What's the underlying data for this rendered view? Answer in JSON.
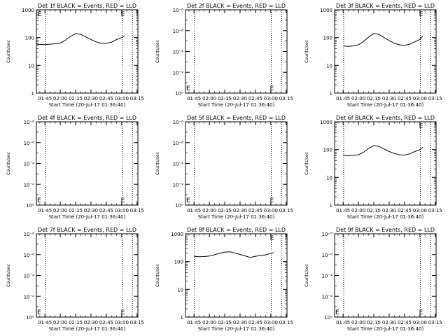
{
  "window": {
    "background": "#ffffff",
    "foreground": "#000000",
    "lld_color": "#ff0000"
  },
  "panels": [
    {
      "title": "Det 1f BLACK = Events, RED = LLD",
      "ylabel": "Counts/sec",
      "xlabel": "Start Time (20-Jul-17 01:36:40)",
      "scale": "decade",
      "yticks": [
        "1",
        "10",
        "100",
        "1000"
      ],
      "xticks": [
        "01:45",
        "02:00",
        "02:15",
        "02:30",
        "02:45",
        "03:00",
        "03:15"
      ],
      "marker_label": "E",
      "e_marker": "left-top",
      "has_data": true,
      "series": "A"
    },
    {
      "title": "Det 2f BLACK = Events, RED = LLD",
      "ylabel": "Counts/sec",
      "xlabel": "Start Time (20-Jul-17 01:36:40)",
      "scale": "tiny",
      "yticks": [
        "10⁰",
        "10⁻²",
        "10⁻⁴",
        "10⁻⁶",
        "10⁻⁸"
      ],
      "xticks": [
        "01:45",
        "02:00",
        "02:15",
        "02:30",
        "02:45",
        "03:00",
        "03:15"
      ],
      "marker_label": "E",
      "e_marker": "bottom",
      "has_data": false
    },
    {
      "title": "Det 3f BLACK = Events, RED = LLD",
      "ylabel": "Counts/sec",
      "xlabel": "Start Time (20-Jul-17 01:36:40)",
      "scale": "decade",
      "yticks": [
        "1",
        "10",
        "100",
        "1000"
      ],
      "xticks": [
        "01:45",
        "02:00",
        "02:15",
        "02:30",
        "02:45",
        "03:00",
        "03:15"
      ],
      "marker_label": "E",
      "e_marker": "right-top",
      "has_data": true,
      "series": "C"
    },
    {
      "title": "Det 4f BLACK = Events, RED = LLD",
      "ylabel": "Counts/sec",
      "xlabel": "Start Time (20-Jul-17 01:36:40)",
      "scale": "tiny",
      "yticks": [
        "10⁰",
        "10⁻²",
        "10⁻⁴",
        "10⁻⁶",
        "10⁻⁸"
      ],
      "xticks": [
        "01:45",
        "02:00",
        "02:15",
        "02:30",
        "02:45",
        "03:00",
        "03:15"
      ],
      "marker_label": "E",
      "e_marker": "bottom",
      "has_data": false
    },
    {
      "title": "Det 5f BLACK = Events, RED = LLD",
      "ylabel": "Counts/sec",
      "xlabel": "Start Time (20-Jul-17 01:36:40)",
      "scale": "tiny",
      "yticks": [
        "10⁰",
        "10⁻²",
        "10⁻⁴",
        "10⁻⁶",
        "10⁻⁸"
      ],
      "xticks": [
        "01:45",
        "02:00",
        "02:15",
        "02:30",
        "02:45",
        "03:00",
        "03:15"
      ],
      "marker_label": "E",
      "e_marker": "bottom",
      "has_data": false
    },
    {
      "title": "Det 6f BLACK = Events, RED = LLD",
      "ylabel": "Counts/sec",
      "xlabel": "Start Time (20-Jul-17 01:36:40)",
      "scale": "decade",
      "yticks": [
        "1",
        "10",
        "100",
        "1000"
      ],
      "xticks": [
        "01:45",
        "02:00",
        "02:15",
        "02:30",
        "02:45",
        "03:00",
        "03:15"
      ],
      "marker_label": "E",
      "e_marker": "right-top",
      "has_data": true,
      "series": "C"
    },
    {
      "title": "Det 7f BLACK = Events, RED = LLD",
      "ylabel": "Counts/sec",
      "xlabel": "Start Time (20-Jul-17 01:36:40)",
      "scale": "tiny",
      "yticks": [
        "10⁰",
        "10⁻²",
        "10⁻⁴",
        "10⁻⁶",
        "10⁻⁸"
      ],
      "xticks": [
        "01:45",
        "02:00",
        "02:15",
        "02:30",
        "02:45",
        "03:00",
        "03:15"
      ],
      "marker_label": "E",
      "e_marker": "bottom",
      "has_data": false
    },
    {
      "title": "Det 8f BLACK = Events, RED = LLD",
      "ylabel": "Counts/sec",
      "xlabel": "Start Time (20-Jul-17 01:36:40)",
      "scale": "decade",
      "yticks": [
        "1",
        "10",
        "100",
        "1000"
      ],
      "xticks": [
        "01:45",
        "02:00",
        "02:15",
        "02:30",
        "02:45",
        "03:00",
        "03:15"
      ],
      "marker_label": "E",
      "e_marker": "right-top",
      "has_data": true,
      "series": "H"
    },
    {
      "title": "Det 9f BLACK = Events, RED = LLD",
      "ylabel": "Counts/sec",
      "xlabel": "Start Time (20-Jul-17 01:36:40)",
      "scale": "tiny",
      "yticks": [
        "10⁰",
        "10⁻²",
        "10⁻⁴",
        "10⁻⁶",
        "10⁻⁸"
      ],
      "xticks": [
        "01:45",
        "02:00",
        "02:15",
        "02:30",
        "02:45",
        "03:00",
        "03:15"
      ],
      "marker_label": "E",
      "e_marker": "bottom",
      "has_data": false
    }
  ],
  "chart_data": [
    {
      "panel": "Det 1f",
      "type": "line",
      "title": "Det 1f BLACK = Events, RED = LLD",
      "ylabel": "Counts/sec",
      "xlabel": "Start Time (20-Jul-17 01:36:40)",
      "yscale": "log",
      "ylim": [
        1,
        1000
      ],
      "xlim": [
        "01:36:40",
        "03:15"
      ],
      "series": [
        {
          "x": [
            "01:36:40",
            "01:45",
            "01:50",
            "01:55",
            "02:00",
            "02:05",
            "02:10",
            "02:15",
            "02:20",
            "02:25",
            "02:30",
            "02:35",
            "02:40",
            "02:45",
            "02:50",
            "02:55",
            "03:00",
            "03:03"
          ],
          "values": [
            58,
            56,
            58,
            60,
            63,
            80,
            110,
            140,
            130,
            105,
            85,
            70,
            62,
            62,
            68,
            85,
            100,
            115
          ]
        }
      ]
    },
    {
      "panel": "Det 2f",
      "type": "line",
      "title": "Det 2f BLACK = Events, RED = LLD",
      "ylabel": "Counts/sec",
      "xlabel": "Start Time (20-Jul-17 01:36:40)",
      "yscale": "log",
      "ylim": [
        1e-08,
        1
      ],
      "series": []
    },
    {
      "panel": "Det 3f",
      "type": "line",
      "title": "Det 3f BLACK = Events, RED = LLD",
      "ylabel": "Counts/sec",
      "xlabel": "Start Time (20-Jul-17 01:36:40)",
      "yscale": "log",
      "ylim": [
        1,
        1000
      ],
      "series": [
        {
          "x": [
            "01:45",
            "01:50",
            "01:55",
            "02:00",
            "02:05",
            "02:10",
            "02:15",
            "02:20",
            "02:25",
            "02:30",
            "02:35",
            "02:40",
            "02:45",
            "02:50",
            "02:55",
            "03:00",
            "03:03"
          ],
          "values": [
            50,
            48,
            50,
            55,
            72,
            105,
            140,
            130,
            100,
            78,
            62,
            55,
            52,
            58,
            70,
            85,
            115
          ]
        }
      ]
    },
    {
      "panel": "Det 4f",
      "type": "line",
      "title": "Det 4f BLACK = Events, RED = LLD",
      "ylabel": "Counts/sec",
      "xlabel": "Start Time (20-Jul-17 01:36:40)",
      "yscale": "log",
      "ylim": [
        1e-08,
        1
      ],
      "series": []
    },
    {
      "panel": "Det 5f",
      "type": "line",
      "title": "Det 5f BLACK = Events, RED = LLD",
      "ylabel": "Counts/sec",
      "xlabel": "Start Time (20-Jul-17 01:36:40)",
      "yscale": "log",
      "ylim": [
        1e-08,
        1
      ],
      "series": []
    },
    {
      "panel": "Det 6f",
      "type": "line",
      "title": "Det 6f BLACK = Events, RED = LLD",
      "ylabel": "Counts/sec",
      "xlabel": "Start Time (20-Jul-17 01:36:40)",
      "yscale": "log",
      "ylim": [
        1,
        1000
      ],
      "series": [
        {
          "x": [
            "01:45",
            "01:50",
            "01:55",
            "02:00",
            "02:05",
            "02:10",
            "02:15",
            "02:20",
            "02:25",
            "02:30",
            "02:35",
            "02:40",
            "02:45",
            "02:50",
            "02:55",
            "03:00",
            "03:03"
          ],
          "values": [
            62,
            60,
            62,
            65,
            80,
            110,
            140,
            130,
            105,
            85,
            72,
            65,
            63,
            70,
            85,
            100,
            120
          ]
        }
      ]
    },
    {
      "panel": "Det 7f",
      "type": "line",
      "title": "Det 7f BLACK = Events, RED = LLD",
      "ylabel": "Counts/sec",
      "xlabel": "Start Time (20-Jul-17 01:36:40)",
      "yscale": "log",
      "ylim": [
        1e-08,
        1
      ],
      "series": []
    },
    {
      "panel": "Det 8f",
      "type": "line",
      "title": "Det 8f BLACK = Events, RED = LLD",
      "ylabel": "Counts/sec",
      "xlabel": "Start Time (20-Jul-17 01:36:40)",
      "yscale": "log",
      "ylim": [
        1,
        1000
      ],
      "series": [
        {
          "x": [
            "01:45",
            "01:50",
            "01:55",
            "02:00",
            "02:05",
            "02:10",
            "02:15",
            "02:20",
            "02:25",
            "02:30",
            "02:35",
            "02:40",
            "02:45",
            "02:50",
            "02:55",
            "03:00",
            "03:03"
          ],
          "values": [
            155,
            150,
            152,
            158,
            175,
            200,
            220,
            225,
            205,
            180,
            160,
            140,
            155,
            165,
            175,
            195,
            210
          ]
        }
      ]
    },
    {
      "panel": "Det 9f",
      "type": "line",
      "title": "Det 9f BLACK = Events, RED = LLD",
      "ylabel": "Counts/sec",
      "xlabel": "Start Time (20-Jul-17 01:36:40)",
      "yscale": "log",
      "ylim": [
        1e-08,
        1
      ],
      "series": []
    }
  ]
}
